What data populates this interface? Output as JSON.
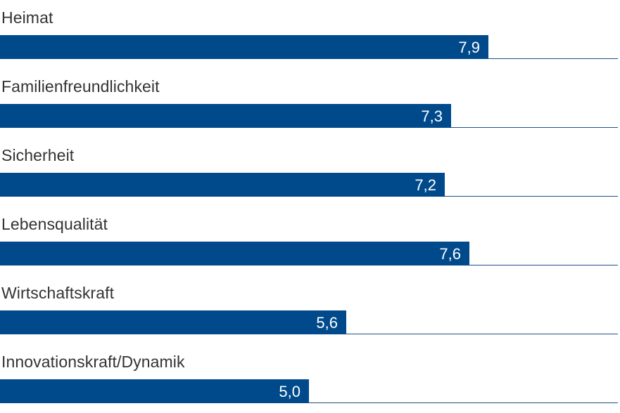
{
  "chart_data": {
    "type": "bar",
    "orientation": "horizontal",
    "categories": [
      "Heimat",
      "Familienfreundlichkeit",
      "Sicherheit",
      "Lebensqualität",
      "Wirtschaftskraft",
      "Innovationskraft/Dynamik"
    ],
    "values": [
      7.9,
      7.3,
      7.2,
      7.6,
      5.6,
      5.0
    ],
    "value_labels": [
      "7,9",
      "7,3",
      "7,2",
      "7,6",
      "5,6",
      "5,0"
    ],
    "xlim": [
      0,
      10
    ],
    "grid": false,
    "legend": "none"
  },
  "colors": {
    "bar": "#004a8c",
    "label": "#333333",
    "value_text": "#ffffff",
    "baseline": "#1e4f86"
  }
}
